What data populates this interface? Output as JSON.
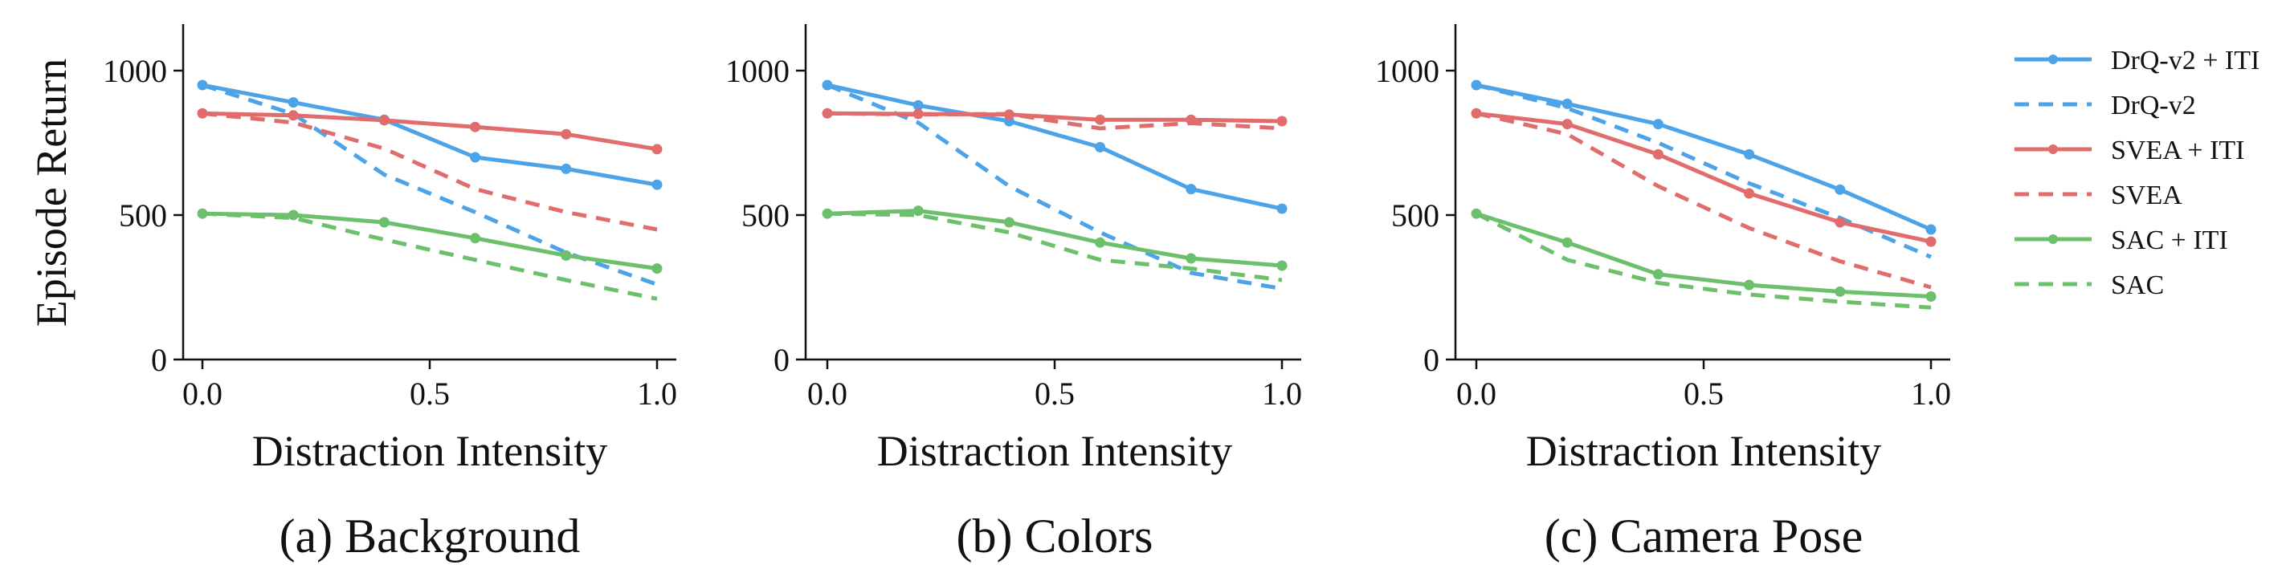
{
  "chart_data": [
    {
      "type": "line",
      "caption": "(a) Background",
      "xlabel": "Distraction Intensity",
      "ylabel": "Episode Return",
      "xlim": [
        0,
        1
      ],
      "ylim": [
        0,
        1000
      ],
      "x": [
        0.0,
        0.2,
        0.4,
        0.6,
        0.8,
        1.0
      ],
      "xticks": [
        "0.0",
        "0.5",
        "1.0"
      ],
      "yticks": [
        "0",
        "500",
        "1000"
      ],
      "series": [
        {
          "name": "DrQ-v2 + ITI",
          "color": "#4da3e8",
          "style": "solid",
          "values": [
            950,
            890,
            830,
            700,
            660,
            605
          ]
        },
        {
          "name": "DrQ-v2",
          "color": "#4da3e8",
          "style": "dashed",
          "values": [
            950,
            850,
            640,
            510,
            370,
            260
          ]
        },
        {
          "name": "SVEA + ITI",
          "color": "#e06c6c",
          "style": "solid",
          "values": [
            852,
            845,
            828,
            805,
            780,
            728
          ]
        },
        {
          "name": "SVEA",
          "color": "#e06c6c",
          "style": "dashed",
          "values": [
            852,
            820,
            730,
            590,
            510,
            450
          ]
        },
        {
          "name": "SAC + ITI",
          "color": "#6cc06c",
          "style": "solid",
          "values": [
            505,
            500,
            475,
            420,
            360,
            315
          ]
        },
        {
          "name": "SAC",
          "color": "#6cc06c",
          "style": "dashed",
          "values": [
            505,
            490,
            415,
            345,
            275,
            210
          ]
        }
      ]
    },
    {
      "type": "line",
      "caption": "(b) Colors",
      "xlabel": "Distraction Intensity",
      "ylabel": "",
      "xlim": [
        0,
        1
      ],
      "ylim": [
        0,
        1000
      ],
      "x": [
        0.0,
        0.2,
        0.4,
        0.6,
        0.8,
        1.0
      ],
      "xticks": [
        "0.0",
        "0.5",
        "1.0"
      ],
      "yticks": [
        "0",
        "500",
        "1000"
      ],
      "series": [
        {
          "name": "DrQ-v2 + ITI",
          "color": "#4da3e8",
          "style": "solid",
          "values": [
            950,
            880,
            825,
            735,
            590,
            522
          ]
        },
        {
          "name": "DrQ-v2",
          "color": "#4da3e8",
          "style": "dashed",
          "values": [
            950,
            820,
            600,
            440,
            300,
            245
          ]
        },
        {
          "name": "SVEA + ITI",
          "color": "#e06c6c",
          "style": "solid",
          "values": [
            852,
            850,
            848,
            830,
            830,
            825
          ]
        },
        {
          "name": "SVEA",
          "color": "#e06c6c",
          "style": "dashed",
          "values": [
            852,
            848,
            850,
            800,
            818,
            800
          ]
        },
        {
          "name": "SAC + ITI",
          "color": "#6cc06c",
          "style": "solid",
          "values": [
            505,
            515,
            475,
            405,
            350,
            325
          ]
        },
        {
          "name": "SAC",
          "color": "#6cc06c",
          "style": "dashed",
          "values": [
            505,
            500,
            440,
            345,
            315,
            275
          ]
        }
      ]
    },
    {
      "type": "line",
      "caption": "(c) Camera Pose",
      "xlabel": "Distraction Intensity",
      "ylabel": "",
      "xlim": [
        0,
        1
      ],
      "ylim": [
        0,
        1000
      ],
      "x": [
        0.0,
        0.2,
        0.4,
        0.6,
        0.8,
        1.0
      ],
      "xticks": [
        "0.0",
        "0.5",
        "1.0"
      ],
      "yticks": [
        "0",
        "500",
        "1000"
      ],
      "series": [
        {
          "name": "DrQ-v2 + ITI",
          "color": "#4da3e8",
          "style": "solid",
          "values": [
            950,
            885,
            815,
            710,
            588,
            450
          ]
        },
        {
          "name": "DrQ-v2",
          "color": "#4da3e8",
          "style": "dashed",
          "values": [
            950,
            870,
            750,
            610,
            490,
            355
          ]
        },
        {
          "name": "SVEA + ITI",
          "color": "#e06c6c",
          "style": "solid",
          "values": [
            852,
            815,
            710,
            575,
            475,
            408
          ]
        },
        {
          "name": "SVEA",
          "color": "#e06c6c",
          "style": "dashed",
          "values": [
            852,
            780,
            600,
            455,
            340,
            250
          ]
        },
        {
          "name": "SAC + ITI",
          "color": "#6cc06c",
          "style": "solid",
          "values": [
            505,
            405,
            295,
            258,
            235,
            218
          ]
        },
        {
          "name": "SAC",
          "color": "#6cc06c",
          "style": "dashed",
          "values": [
            505,
            345,
            265,
            225,
            200,
            180
          ]
        }
      ]
    }
  ],
  "legend": {
    "placement": "right",
    "entries": [
      {
        "label": "DrQ-v2 + ITI",
        "color": "#4da3e8",
        "style": "solid"
      },
      {
        "label": "DrQ-v2",
        "color": "#4da3e8",
        "style": "dashed"
      },
      {
        "label": "SVEA + ITI",
        "color": "#e06c6c",
        "style": "solid"
      },
      {
        "label": "SVEA",
        "color": "#e06c6c",
        "style": "dashed"
      },
      {
        "label": "SAC + ITI",
        "color": "#6cc06c",
        "style": "solid"
      },
      {
        "label": "SAC",
        "color": "#6cc06c",
        "style": "dashed"
      }
    ]
  }
}
